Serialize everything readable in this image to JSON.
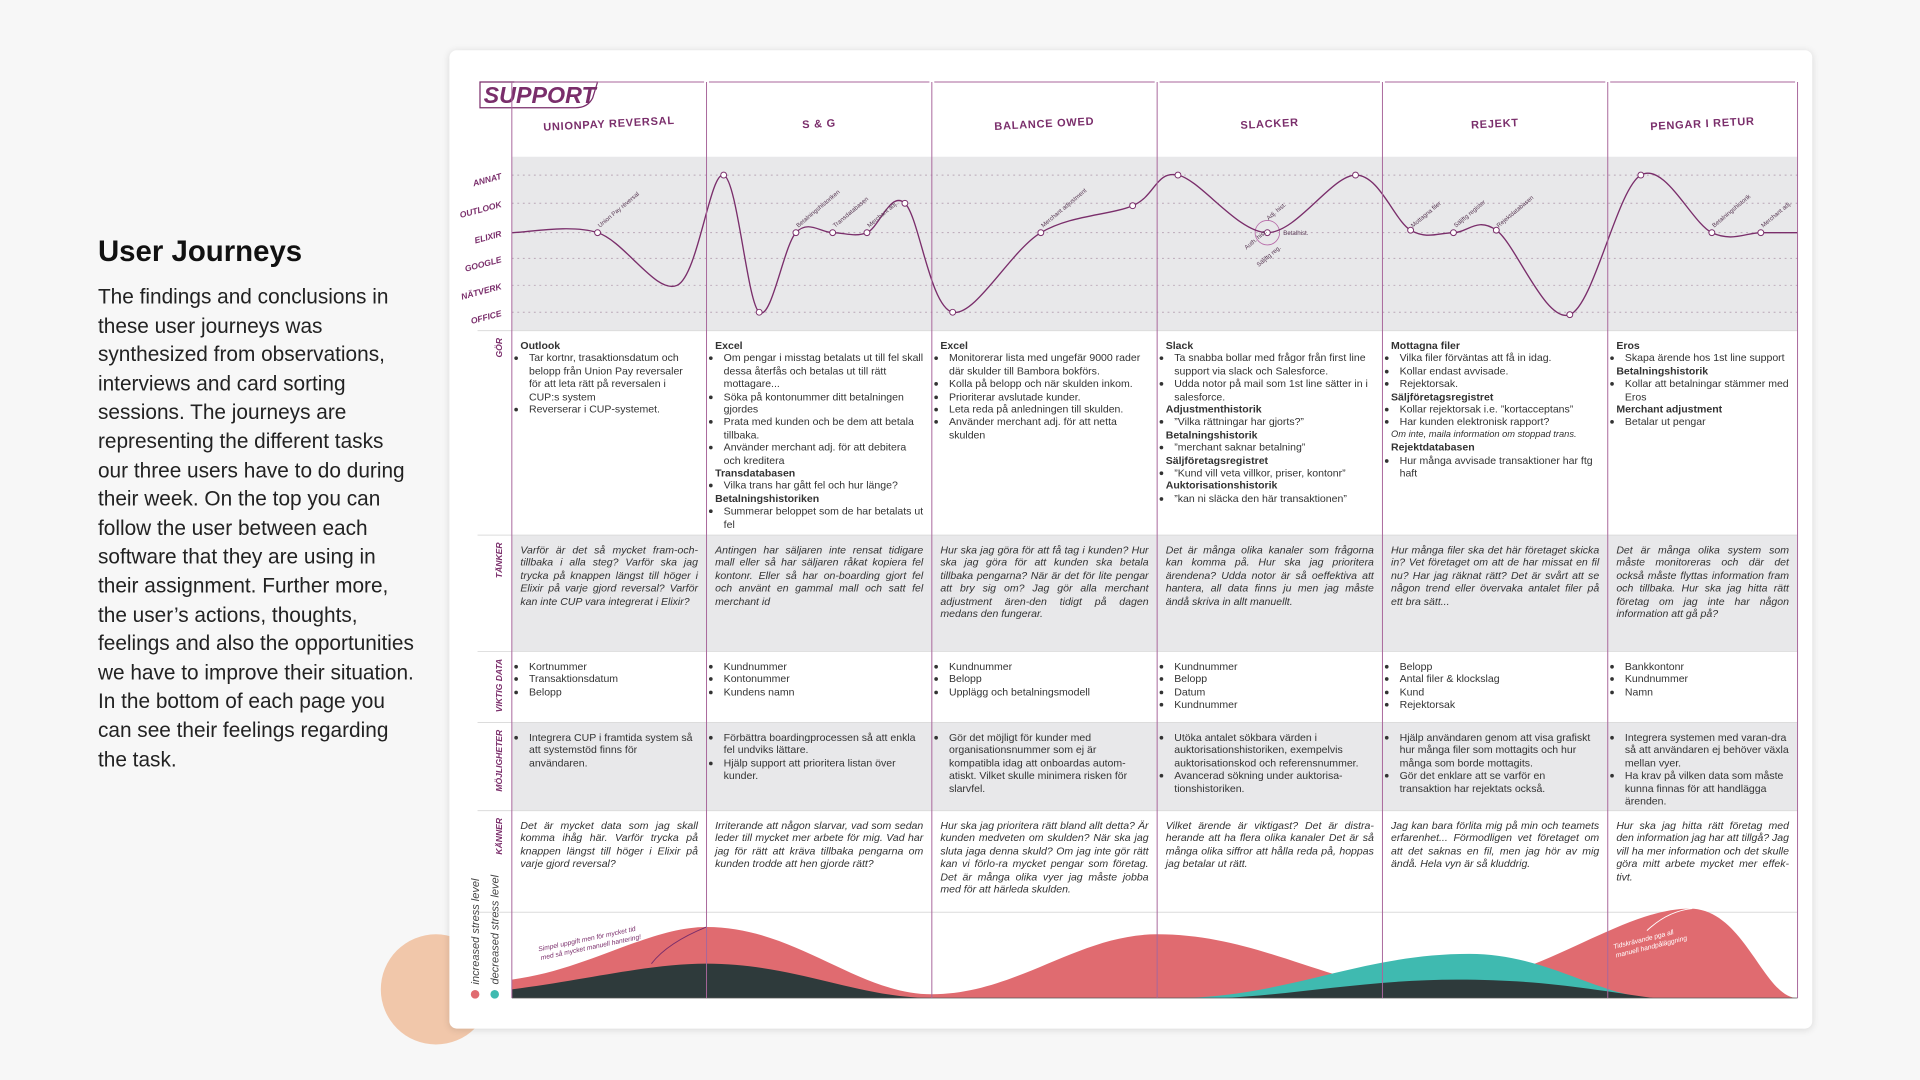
{
  "header": {
    "title": "User Journeys",
    "body": "The findings and conclusions in these user journeys was synthesized from observations, interviews and card sorting sessions. The journeys are representing the different tasks our three users have to do during their week. On the top you can follow the user between each software that they are using in their assignment. Further more, the user’s actions, thoughts, feelings and also the opportunities  we have to improve their situation. In the bottom of each page you can see their feelings regarding the task."
  },
  "map": {
    "title": "SUPPORT",
    "levels": [
      "ANNAT",
      "OUTLOOK",
      "ELIXIR",
      "GOOGLE",
      "NÄTVERK",
      "OFFICE"
    ],
    "rows": [
      "GÖR",
      "TÄNKER",
      "VIKTIG DATA",
      "MÖJLIGHETER",
      "KÄNNER"
    ],
    "legend": [
      "increased stress level",
      "decreased stress level"
    ],
    "annotations": [
      [
        "Simpel uppgift men för mycket tid",
        "med så mycket manuell hantering!"
      ],
      [
        "Tidskrävande pga all",
        "manuell handpåläggning"
      ]
    ],
    "columns": [
      {
        "name": "UNIONPAY REVERSAL",
        "points": [
          "Union Pay reversal"
        ],
        "gor": [
          {
            "title": "Outlook",
            "bullets": [
              "Tar kortnr, trasaktionsdatum och belopp från Union Pay reversaler för att leta rätt på reversalen i CUP:s system",
              "Reverserar i CUP-systemet."
            ]
          }
        ],
        "tanker": "Varför är det så mycket fram-och-tillbaka i alla steg? Varför ska jag trycka på knappen längst till höger i Elixir på varje gjord reversal? Varför kan inte CUP vara integrerat i Elixir?",
        "viktig_data": [
          "Kortnummer",
          "Transaktionsdatum",
          "Belopp"
        ],
        "mojligheter": [
          "Integrera CUP i framtida system så att systemstöd finns för användaren."
        ],
        "kanner": "Det är mycket data som jag skall komma ihåg här. Varför trycka på knappen längst till höger i Elixir på varje gjord reversal?"
      },
      {
        "name": "S & G",
        "points": [
          "Betalningshistoriken",
          "Transdatabasen",
          "Merchant adj."
        ],
        "gor": [
          {
            "title": "Excel",
            "bullets": [
              "Om pengar i misstag betalats ut till fel skall dessa återfås och betalas ut till rätt mottagare...",
              "Söka på kontonummer ditt betalningen gjordes",
              "Prata med kunden och be dem att betala tillbaka.",
              "Använder merchant adj. för att debitera och kreditera"
            ]
          },
          {
            "title": "Transdatabasen",
            "bullets": [
              "Vilka trans har gått fel och hur länge?"
            ]
          },
          {
            "title": "Betalningshistoriken",
            "bullets": [
              "Summerar beloppet som de har betalats ut fel"
            ]
          }
        ],
        "tanker": "Antingen har säljaren inte rensat tidigare mall eller så har säljaren råkat kopiera fel kontonr. Eller så har on-boarding gjort fel och använt en gammal mall och satt fel merchant id",
        "viktig_data": [
          "Kundnummer",
          "Kontonummer",
          "Kundens namn"
        ],
        "mojligheter": [
          "Förbättra boardingprocessen så att enkla fel undviks lättare.",
          "Hjälp support att prioritera listan över kunder."
        ],
        "kanner": "Irriterande att någon slarvar, vad som sedan leder till mycket mer arbete för mig. Vad har jag för rätt att kräva tillbaka pengarna om kunden trodde att hen gjorde rätt?"
      },
      {
        "name": "BALANCE OWED",
        "points": [
          "Merchant adjustment"
        ],
        "gor": [
          {
            "title": "Excel",
            "bullets": [
              "Monitorerar lista med ungefär 9000 rader där skulder till Bambora bokförs.",
              "Kolla på belopp och när skulden inkom.",
              "Prioriterar avslutade kunder.",
              "Leta reda på anledningen till skulden.",
              "Använder merchant adj. för att netta skulden"
            ]
          }
        ],
        "tanker": "Hur ska jag göra för att få tag i kunden? Hur ska jag göra för att kunden ska betala tillbaka pengarna? När är det för lite pengar att bry sig om? Jag gör alla merchant adjustment ären-den tidigt på dagen medans den fungerar.",
        "viktig_data": [
          "Kundnummer",
          "Belopp",
          "Upplägg och betalningsmodell"
        ],
        "mojligheter": [
          "Gör det möjligt för kunder med organisationsnummer som ej är kompatibla idag att onboardas autom-atiskt. Vilket skulle minimera risken för slarvfel."
        ],
        "kanner": "Hur ska jag prioritera rätt bland allt detta? Är kunden medveten om skulden? När ska jag sluta jaga denna skuld? Om jag inte gör rätt kan vi förlo-ra mycket pengar som företag. Det är många olika vyer jag måste jobba med för att härleda skulden."
      },
      {
        "name": "SLACKER",
        "points": [
          "Adj. hist.",
          "Auth. hist.",
          "Betalhist.",
          "Säljftg reg."
        ],
        "gor": [
          {
            "title": "Slack",
            "bullets": [
              "Ta snabba bollar med frågor från first line support via slack och Salesforce.",
              "Udda notor på mail som 1st line sätter in i salesforce."
            ]
          },
          {
            "title": "Adjustmenthistorik",
            "bullets": [
              "”Vilka rättningar har gjorts?”"
            ]
          },
          {
            "title": "Betalningshistorik",
            "bullets": [
              "”merchant saknar betalning”"
            ]
          },
          {
            "title": "Säljföretagsregistret",
            "bullets": [
              "”Kund vill veta villkor, priser, kontonr”"
            ]
          },
          {
            "title": "Auktorisationshistorik",
            "bullets": [
              "”kan ni släcka den här transaktionen”"
            ]
          }
        ],
        "tanker": "Det är många olika kanaler som frågorna kan komma på. Hur ska jag prioritera ärendena? Udda notor är så oeffektiva att hantera, all data finns ju men jag måste ändå skriva in allt manuellt.",
        "viktig_data": [
          "Kundnummer",
          "Belopp",
          "Datum",
          "Kundnummer"
        ],
        "mojligheter": [
          "Utöka antalet sökbara värden i auktorisationshistoriken, exempelvis auktorisationskod och referensnummer.",
          "Avancerad sökning under auktorisa-tionshistoriken."
        ],
        "kanner": "Vilket ärende är viktigast? Det är distra-herande att ha flera olika kanaler Det är så många olika siffror att hålla reda på, hoppas jag betalar ut rätt."
      },
      {
        "name": "REJEKT",
        "points": [
          "Mottagna filer",
          "Säljftg register",
          "Rejektdatabasen"
        ],
        "gor": [
          {
            "title": "Mottagna filer",
            "bullets": [
              "Vilka filer förväntas att få in idag.",
              "Kollar endast avvisade.",
              "Rejektorsak."
            ]
          },
          {
            "title": "Säljföretagsregistret",
            "bullets": [
              "Kollar rejektorsak i.e. ”kortacceptans”",
              "Har kunden elektronisk rapport?"
            ],
            "note": "Om inte, maila information om stoppad trans."
          },
          {
            "title": "Rejektdatabasen",
            "bullets": [
              "Hur många avvisade transaktioner har ftg haft"
            ]
          }
        ],
        "tanker": "Hur många filer ska det här företaget skicka in? Vet företaget om att de har missat en fil nu? Har jag räknat rätt? Det är svårt att se någon trend eller övervaka antalet filer på ett bra sätt...",
        "viktig_data": [
          "Belopp",
          "Antal filer & klockslag",
          "Kund",
          "Rejektorsak"
        ],
        "mojligheter": [
          "Hjälp användaren genom att visa grafiskt hur många filer som mottagits och hur många som borde mottagits.",
          "Gör det enklare att se varför en transaktion har rejektats också."
        ],
        "kanner": "Jag kan bara förlita mig på min och teamets erfarenhet... Förmodligen vet företaget om att det saknas en fil, men jag hör av mig ändå. Hela vyn är så kluddrig."
      },
      {
        "name": "PENGAR I RETUR",
        "points": [
          "Betalningshistorik",
          "Merchant adj."
        ],
        "gor": [
          {
            "title": "Eros",
            "bullets": [
              "Skapa ärende hos 1st line support"
            ]
          },
          {
            "title": "Betalningshistorik",
            "bullets": [
              "Kollar att betalningar stämmer med Eros"
            ]
          },
          {
            "title": "Merchant adjustment",
            "bullets": [
              "Betalar ut pengar"
            ]
          }
        ],
        "tanker": "Det är många olika system som måste monitoreras och där det också måste flyttas information fram och tillbaka. Hur ska jag hitta rätt företag om jag inte har någon information att gå på?",
        "viktig_data": [
          "Bankkontonr",
          "Kundnummer",
          "Namn"
        ],
        "mojligheter": [
          "Integrera systemen med varan-dra så att användaren ej behöver växla mellan vyer.",
          "Ha krav på vilken data som måste kunna finnas för att handlägga ärenden."
        ],
        "kanner": "Hur ska jag hitta rätt företag med den information jag har att tillgå? Jag vill ha mer information och det skulle göra mitt arbete mycket mer effek-tivt."
      }
    ]
  }
}
